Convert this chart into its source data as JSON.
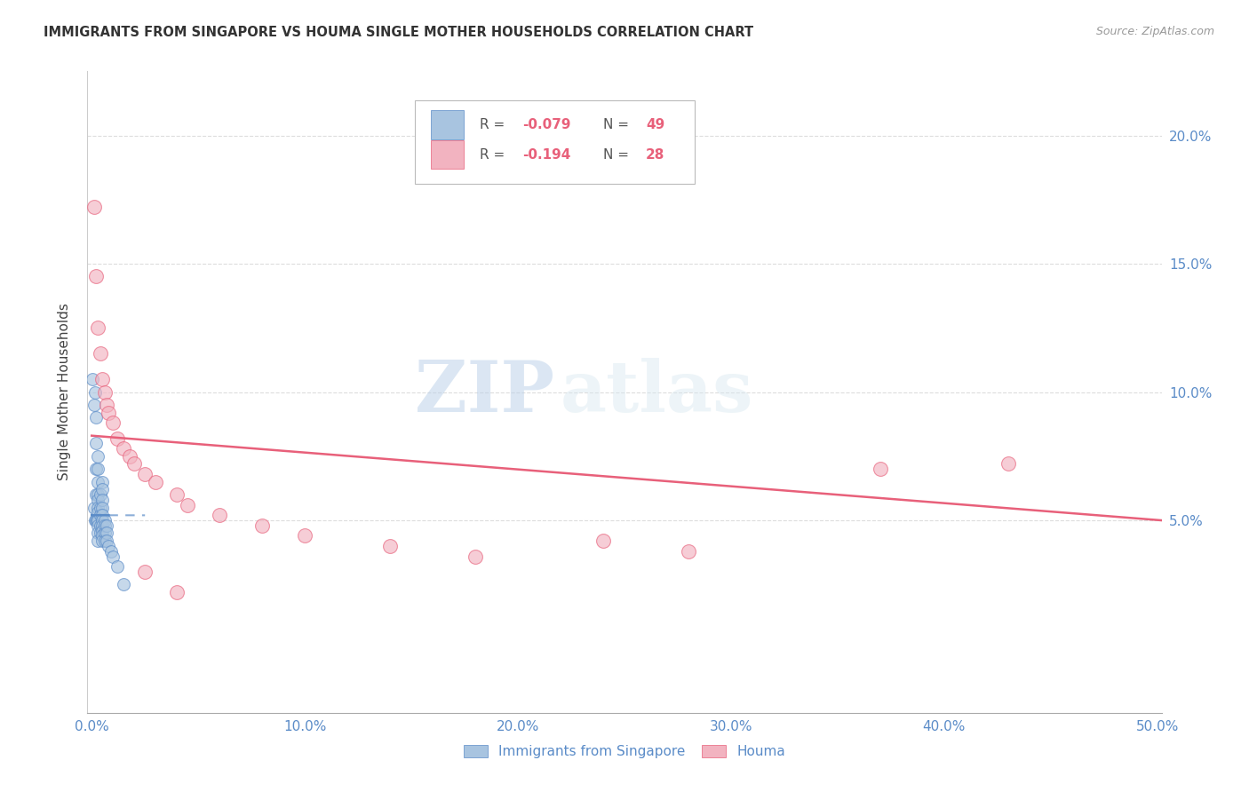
{
  "title": "IMMIGRANTS FROM SINGAPORE VS HOUMA SINGLE MOTHER HOUSEHOLDS CORRELATION CHART",
  "source": "Source: ZipAtlas.com",
  "ylabel": "Single Mother Households",
  "watermark_zip": "ZIP",
  "watermark_atlas": "atlas",
  "legend_r1": "-0.079",
  "legend_n1": "49",
  "legend_r2": "-0.194",
  "legend_n2": "28",
  "xlim": [
    -0.002,
    0.502
  ],
  "ylim": [
    -0.025,
    0.225
  ],
  "xticks": [
    0.0,
    0.1,
    0.2,
    0.3,
    0.4,
    0.5
  ],
  "yticks_right": [
    0.05,
    0.1,
    0.15,
    0.2
  ],
  "xtick_labels": [
    "0.0%",
    "10.0%",
    "20.0%",
    "30.0%",
    "40.0%",
    "50.0%"
  ],
  "ytick_labels_right": [
    "5.0%",
    "10.0%",
    "15.0%",
    "20.0%"
  ],
  "color_blue": "#a8c4e0",
  "color_pink": "#f2b3c0",
  "color_line_blue": "#5b8cc8",
  "color_line_pink": "#e8607a",
  "color_axis": "#5b8cc8",
  "title_color": "#333333",
  "singapore_x": [
    0.0005,
    0.001,
    0.001,
    0.0015,
    0.0015,
    0.002,
    0.002,
    0.002,
    0.002,
    0.002,
    0.0025,
    0.003,
    0.003,
    0.003,
    0.003,
    0.003,
    0.003,
    0.003,
    0.003,
    0.003,
    0.003,
    0.003,
    0.004,
    0.004,
    0.004,
    0.004,
    0.004,
    0.005,
    0.005,
    0.005,
    0.005,
    0.005,
    0.005,
    0.005,
    0.005,
    0.005,
    0.005,
    0.006,
    0.006,
    0.006,
    0.006,
    0.007,
    0.007,
    0.007,
    0.008,
    0.009,
    0.01,
    0.012,
    0.015
  ],
  "singapore_y": [
    0.105,
    0.095,
    0.055,
    0.1,
    0.05,
    0.09,
    0.08,
    0.07,
    0.06,
    0.05,
    0.05,
    0.075,
    0.07,
    0.065,
    0.06,
    0.058,
    0.055,
    0.053,
    0.05,
    0.048,
    0.045,
    0.042,
    0.06,
    0.055,
    0.052,
    0.048,
    0.045,
    0.065,
    0.062,
    0.058,
    0.055,
    0.052,
    0.05,
    0.048,
    0.046,
    0.044,
    0.042,
    0.05,
    0.048,
    0.045,
    0.042,
    0.048,
    0.045,
    0.042,
    0.04,
    0.038,
    0.036,
    0.032,
    0.025
  ],
  "houma_x": [
    0.001,
    0.002,
    0.003,
    0.004,
    0.005,
    0.006,
    0.007,
    0.008,
    0.01,
    0.012,
    0.015,
    0.018,
    0.02,
    0.025,
    0.03,
    0.04,
    0.045,
    0.06,
    0.08,
    0.1,
    0.14,
    0.18,
    0.24,
    0.28,
    0.37,
    0.43,
    0.025,
    0.04
  ],
  "houma_y": [
    0.172,
    0.145,
    0.125,
    0.115,
    0.105,
    0.1,
    0.095,
    0.092,
    0.088,
    0.082,
    0.078,
    0.075,
    0.072,
    0.068,
    0.065,
    0.06,
    0.056,
    0.052,
    0.048,
    0.044,
    0.04,
    0.036,
    0.042,
    0.038,
    0.07,
    0.072,
    0.03,
    0.022
  ],
  "blue_line_x": [
    0.0,
    0.008,
    0.009,
    0.025
  ],
  "blue_line_y_start": 0.052,
  "blue_line_slope": -1.2,
  "pink_line_x_start": 0.0,
  "pink_line_x_end": 0.502,
  "pink_line_y_start": 0.083,
  "pink_line_y_end": 0.05
}
